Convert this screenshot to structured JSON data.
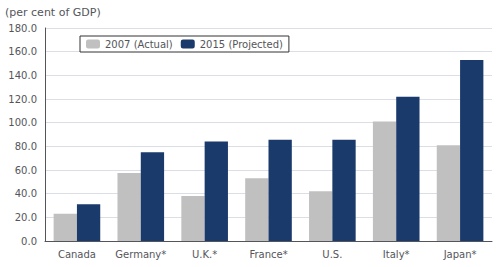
{
  "chart_data": {
    "type": "bar",
    "ylabel": "(per cent of GDP)",
    "categories": [
      "Canada",
      "Germany*",
      "U.K.*",
      "France*",
      "U.S.",
      "Italy*",
      "Japan*"
    ],
    "series": [
      {
        "name": "2007 (Actual)",
        "color": "#c0c0c0",
        "values": [
          23.0,
          57.5,
          38.0,
          53.0,
          42.0,
          101.0,
          81.0
        ]
      },
      {
        "name": "2015 (Projected)",
        "color": "#1a3a6b",
        "values": [
          31.0,
          75.0,
          84.0,
          85.5,
          85.5,
          122.0,
          153.0
        ]
      }
    ],
    "ylim": [
      0,
      180.0
    ],
    "yticks": [
      {
        "value": 0.0,
        "label": "0.0"
      },
      {
        "value": 20.0,
        "label": "20.0"
      },
      {
        "value": 40.0,
        "label": "40.0"
      },
      {
        "value": 60.0,
        "label": "60.0"
      },
      {
        "value": 80.0,
        "label": "80.0"
      },
      {
        "value": 100.0,
        "label": "100.0"
      },
      {
        "value": 120.0,
        "label": "120.0"
      },
      {
        "value": 140.0,
        "label": "140.0"
      },
      {
        "value": 160.0,
        "label": "160.0"
      },
      {
        "value": 180.0,
        "label": "180.0"
      }
    ],
    "grid": true,
    "legend": "upper left"
  }
}
